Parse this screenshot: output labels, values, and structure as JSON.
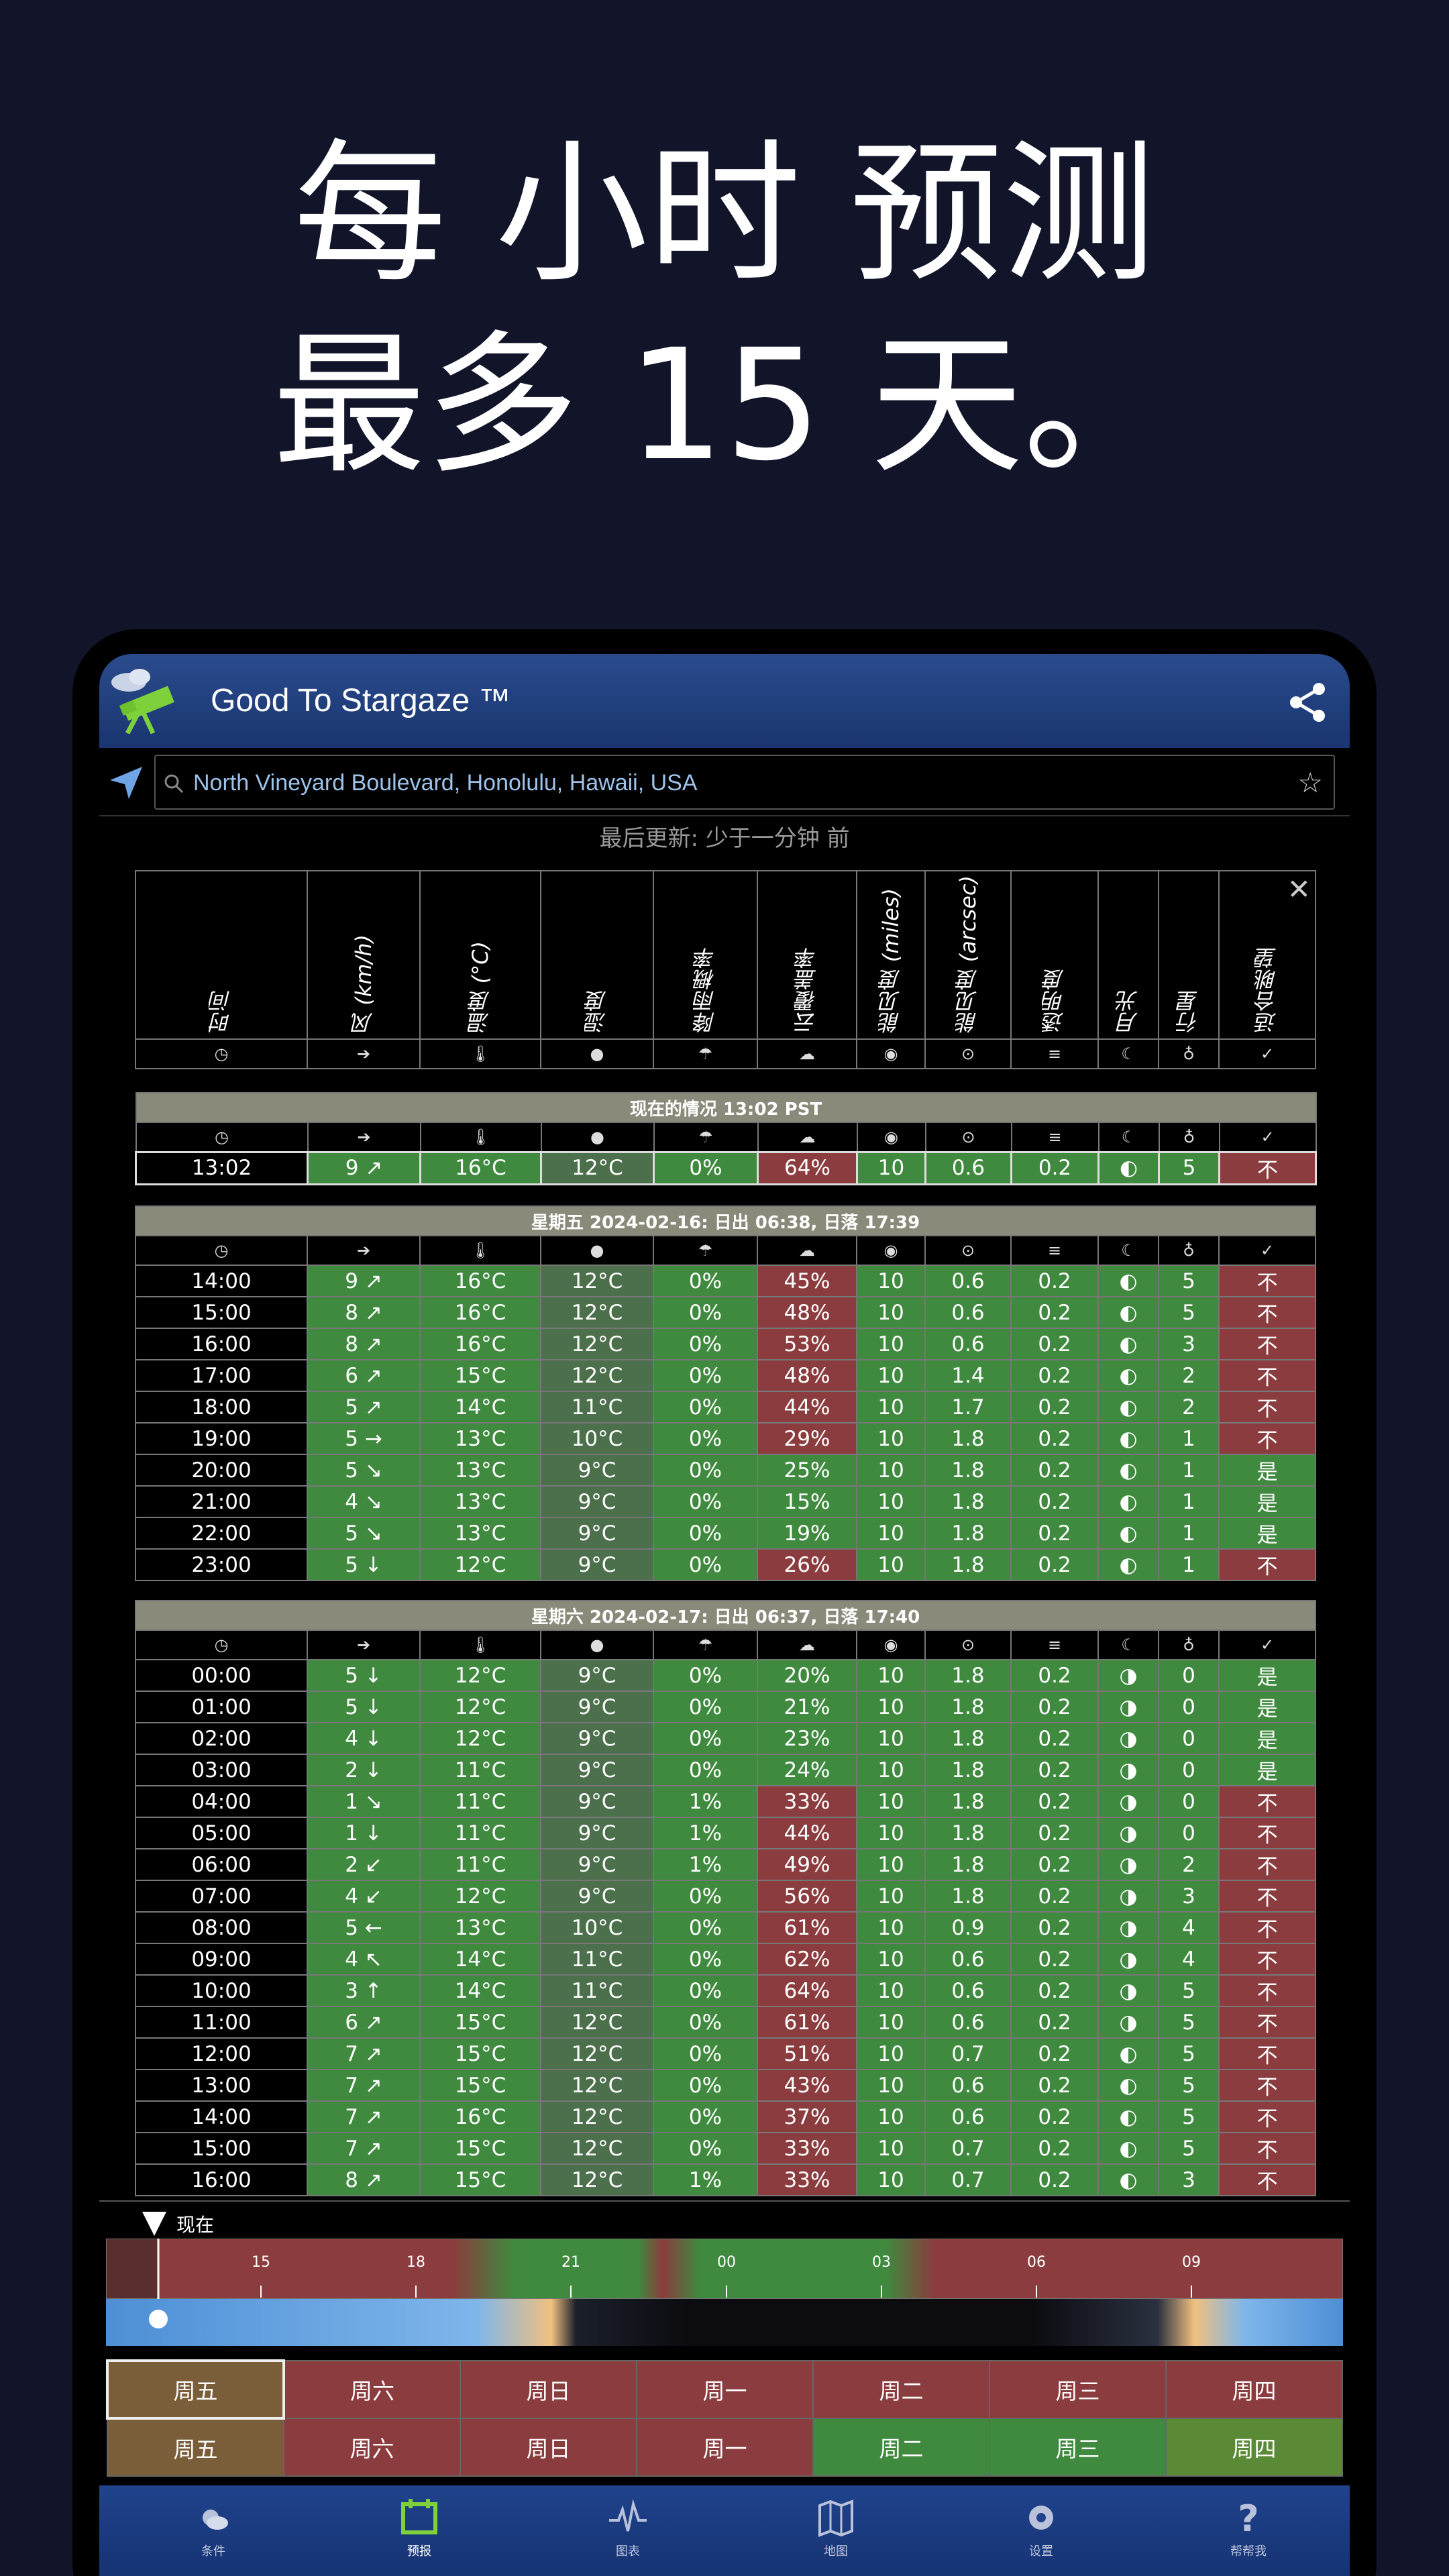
{
  "hero": {
    "line1": "每 小时 预测",
    "line2": "最多 15 天。"
  },
  "app": {
    "title": "Good To Stargaze ™",
    "location": "North Vineyard Boulevard, Honolulu, Hawaii, USA",
    "updated": "最后更新: 少于一分钟 前"
  },
  "columns": [
    "时间",
    "风 (km/h)",
    "温度 (°C)",
    "湿度",
    "降雨概率",
    "云覆盖率",
    "能见度 (miles)",
    "能见度 (arcsec)",
    "透明度",
    "月光",
    "行星",
    "适合眺望"
  ],
  "icons": [
    "clock-icon",
    "wind-arrow-icon",
    "thermometer-icon",
    "droplet-icon",
    "rain-cloud-icon",
    "cloud-icon",
    "eye-icon",
    "seeing-icon",
    "transparency-icon",
    "moon-icon",
    "planet-icon",
    "check-icon"
  ],
  "current": {
    "title": "现在的情况 13:02 PST",
    "row": [
      "13:02",
      "9 ↗",
      "16°C",
      "12°C",
      "0%",
      "64%",
      "10",
      "0.6",
      "0.2",
      "◐",
      "5",
      "不"
    ],
    "good": [
      "k",
      "g",
      "g",
      "gd",
      "g",
      "r",
      "g",
      "g",
      "g",
      "g",
      "g",
      "r"
    ]
  },
  "friday": {
    "title": "星期五 2024-02-16: 日出 06:38, 日落 17:39",
    "rows": [
      [
        "14:00",
        "9 ↗",
        "16°C",
        "12°C",
        "0%",
        "45%",
        "10",
        "0.6",
        "0.2",
        "◐",
        "5",
        "不"
      ],
      [
        "15:00",
        "8 ↗",
        "16°C",
        "12°C",
        "0%",
        "48%",
        "10",
        "0.6",
        "0.2",
        "◐",
        "5",
        "不"
      ],
      [
        "16:00",
        "8 ↗",
        "16°C",
        "12°C",
        "0%",
        "53%",
        "10",
        "0.6",
        "0.2",
        "◐",
        "3",
        "不"
      ],
      [
        "17:00",
        "6 ↗",
        "15°C",
        "12°C",
        "0%",
        "48%",
        "10",
        "1.4",
        "0.2",
        "◐",
        "2",
        "不"
      ],
      [
        "18:00",
        "5 ↗",
        "14°C",
        "11°C",
        "0%",
        "44%",
        "10",
        "1.7",
        "0.2",
        "◐",
        "2",
        "不"
      ],
      [
        "19:00",
        "5 →",
        "13°C",
        "10°C",
        "0%",
        "29%",
        "10",
        "1.8",
        "0.2",
        "◐",
        "1",
        "不"
      ],
      [
        "20:00",
        "5 ↘",
        "13°C",
        "9°C",
        "0%",
        "25%",
        "10",
        "1.8",
        "0.2",
        "◐",
        "1",
        "是"
      ],
      [
        "21:00",
        "4 ↘",
        "13°C",
        "9°C",
        "0%",
        "15%",
        "10",
        "1.8",
        "0.2",
        "◐",
        "1",
        "是"
      ],
      [
        "22:00",
        "5 ↘",
        "13°C",
        "9°C",
        "0%",
        "19%",
        "10",
        "1.8",
        "0.2",
        "◐",
        "1",
        "是"
      ],
      [
        "23:00",
        "5 ↓",
        "12°C",
        "9°C",
        "0%",
        "26%",
        "10",
        "1.8",
        "0.2",
        "◐",
        "1",
        "不"
      ]
    ],
    "cloudbad": [
      true,
      true,
      true,
      true,
      true,
      true,
      false,
      false,
      false,
      true
    ],
    "verdictgood": [
      false,
      false,
      false,
      false,
      false,
      false,
      true,
      true,
      true,
      false
    ]
  },
  "saturday": {
    "title": "星期六 2024-02-17: 日出 06:37, 日落 17:40",
    "rows": [
      [
        "00:00",
        "5 ↓",
        "12°C",
        "9°C",
        "0%",
        "20%",
        "10",
        "1.8",
        "0.2",
        "◑",
        "0",
        "是"
      ],
      [
        "01:00",
        "5 ↓",
        "12°C",
        "9°C",
        "0%",
        "21%",
        "10",
        "1.8",
        "0.2",
        "◑",
        "0",
        "是"
      ],
      [
        "02:00",
        "4 ↓",
        "12°C",
        "9°C",
        "0%",
        "23%",
        "10",
        "1.8",
        "0.2",
        "◑",
        "0",
        "是"
      ],
      [
        "03:00",
        "2 ↓",
        "11°C",
        "9°C",
        "0%",
        "24%",
        "10",
        "1.8",
        "0.2",
        "◑",
        "0",
        "是"
      ],
      [
        "04:00",
        "1 ↘",
        "11°C",
        "9°C",
        "1%",
        "33%",
        "10",
        "1.8",
        "0.2",
        "◑",
        "0",
        "不"
      ],
      [
        "05:00",
        "1 ↓",
        "11°C",
        "9°C",
        "1%",
        "44%",
        "10",
        "1.8",
        "0.2",
        "◑",
        "0",
        "不"
      ],
      [
        "06:00",
        "2 ↙",
        "11°C",
        "9°C",
        "1%",
        "49%",
        "10",
        "1.8",
        "0.2",
        "◑",
        "2",
        "不"
      ],
      [
        "07:00",
        "4 ↙",
        "12°C",
        "9°C",
        "0%",
        "56%",
        "10",
        "1.8",
        "0.2",
        "◑",
        "3",
        "不"
      ],
      [
        "08:00",
        "5 ←",
        "13°C",
        "10°C",
        "0%",
        "61%",
        "10",
        "0.9",
        "0.2",
        "◑",
        "4",
        "不"
      ],
      [
        "09:00",
        "4 ↖",
        "14°C",
        "11°C",
        "0%",
        "62%",
        "10",
        "0.6",
        "0.2",
        "◑",
        "4",
        "不"
      ],
      [
        "10:00",
        "3 ↑",
        "14°C",
        "11°C",
        "0%",
        "64%",
        "10",
        "0.6",
        "0.2",
        "◑",
        "5",
        "不"
      ],
      [
        "11:00",
        "6 ↗",
        "15°C",
        "12°C",
        "0%",
        "61%",
        "10",
        "0.6",
        "0.2",
        "◑",
        "5",
        "不"
      ],
      [
        "12:00",
        "7 ↗",
        "15°C",
        "12°C",
        "0%",
        "51%",
        "10",
        "0.7",
        "0.2",
        "◐",
        "5",
        "不"
      ],
      [
        "13:00",
        "7 ↗",
        "15°C",
        "12°C",
        "0%",
        "43%",
        "10",
        "0.6",
        "0.2",
        "◐",
        "5",
        "不"
      ],
      [
        "14:00",
        "7 ↗",
        "16°C",
        "12°C",
        "0%",
        "37%",
        "10",
        "0.6",
        "0.2",
        "◐",
        "5",
        "不"
      ],
      [
        "15:00",
        "7 ↗",
        "15°C",
        "12°C",
        "0%",
        "33%",
        "10",
        "0.7",
        "0.2",
        "◐",
        "5",
        "不"
      ],
      [
        "16:00",
        "8 ↗",
        "15°C",
        "12°C",
        "1%",
        "33%",
        "10",
        "0.7",
        "0.2",
        "◐",
        "3",
        "不"
      ]
    ],
    "cloudbad": [
      false,
      false,
      false,
      false,
      true,
      true,
      true,
      true,
      true,
      true,
      true,
      true,
      true,
      true,
      true,
      true,
      true
    ],
    "verdictgood": [
      true,
      true,
      true,
      true,
      false,
      false,
      false,
      false,
      false,
      false,
      false,
      false,
      false,
      false,
      false,
      false,
      false
    ]
  },
  "timeline": {
    "now_label": "现在",
    "ticks": [
      "15",
      "18",
      "21",
      "00",
      "03",
      "06",
      "09"
    ]
  },
  "days_row1": [
    "周五",
    "周六",
    "周日",
    "周一",
    "周二",
    "周三",
    "周四"
  ],
  "days_row2": [
    "周五",
    "周六",
    "周日",
    "周一",
    "周二",
    "周三",
    "周四"
  ],
  "days_row2_state": [
    "sel",
    "bad",
    "bad",
    "bad",
    "good",
    "good",
    "ok"
  ],
  "bottom_nav": [
    "条件",
    "预报",
    "图表",
    "地图",
    "设置",
    "帮帮我"
  ],
  "colors": {
    "good": "#3f8a3f",
    "bad": "#8b3c3e",
    "appbar": "#2a4b8c",
    "accent_nav": "#7fd13b"
  }
}
